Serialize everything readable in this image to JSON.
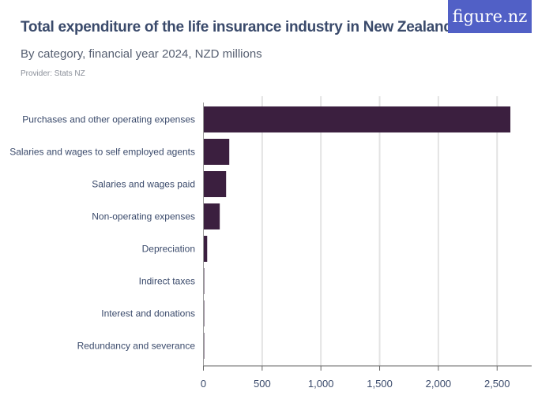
{
  "header": {
    "title": "Total expenditure of the life insurance industry in New Zealand",
    "subtitle": "By category, financial year 2024, NZD millions",
    "provider": "Provider: Stats NZ",
    "logo": "figure.nz"
  },
  "chart_data": {
    "type": "bar",
    "orientation": "horizontal",
    "title": "Total expenditure of the life insurance industry in New Zealand",
    "subtitle": "By category, financial year 2024, NZD millions",
    "categories": [
      "Purchases and other operating expenses",
      "Salaries and wages to self employed agents",
      "Salaries and wages paid",
      "Non-operating expenses",
      "Depreciation",
      "Indirect taxes",
      "Interest and donations",
      "Redundancy and severance"
    ],
    "values": [
      2613,
      220,
      193,
      139,
      32,
      1,
      1,
      1
    ],
    "xlim": [
      0,
      2800
    ],
    "xticks": [
      0,
      500,
      1000,
      1500,
      2000,
      2500
    ],
    "xtick_labels": [
      "0",
      "500",
      "1,000",
      "1,500",
      "2,000",
      "2,500"
    ],
    "grid": true,
    "bar_color": "#3b1f3f"
  }
}
